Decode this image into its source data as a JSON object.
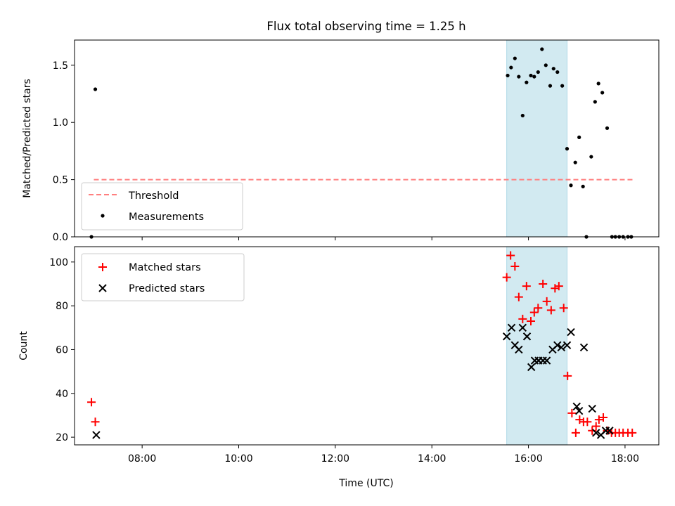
{
  "figure": {
    "title": "Flux total observing time = 1.25 h"
  },
  "chart_data": [
    {
      "type": "scatter",
      "ylabel": "Matched/Predicted stars",
      "xlabel": "",
      "xlim": [
        6.6,
        18.7
      ],
      "ylim": [
        0,
        1.72
      ],
      "yticks": [
        0.0,
        0.5,
        1.0,
        1.5
      ],
      "ytick_labels": [
        "0.0",
        "0.5",
        "1.0",
        "1.5"
      ],
      "grid": false,
      "legend_position": "lower left",
      "shaded_span": {
        "x0": 15.55,
        "x1": 16.8,
        "color": "#add8e6"
      },
      "threshold": {
        "name": "Threshold",
        "value": 0.5,
        "x0": 6.6,
        "x1": 18.16,
        "color": "#ff7f7f",
        "style": "dashed"
      },
      "series": [
        {
          "name": "Measurements",
          "marker": "dot",
          "color": "#000000",
          "points": [
            [
              6.95,
              0.0
            ],
            [
              7.03,
              1.29
            ],
            [
              15.57,
              1.41
            ],
            [
              15.64,
              1.48
            ],
            [
              15.72,
              1.56
            ],
            [
              15.8,
              1.4
            ],
            [
              15.88,
              1.06
            ],
            [
              15.96,
              1.35
            ],
            [
              16.05,
              1.41
            ],
            [
              16.12,
              1.4
            ],
            [
              16.2,
              1.44
            ],
            [
              16.28,
              1.64
            ],
            [
              16.36,
              1.5
            ],
            [
              16.45,
              1.32
            ],
            [
              16.52,
              1.47
            ],
            [
              16.6,
              1.44
            ],
            [
              16.7,
              1.32
            ],
            [
              16.8,
              0.77
            ],
            [
              16.88,
              0.45
            ],
            [
              16.97,
              0.65
            ],
            [
              17.05,
              0.87
            ],
            [
              17.13,
              0.44
            ],
            [
              17.2,
              0.0
            ],
            [
              17.3,
              0.7
            ],
            [
              17.38,
              1.18
            ],
            [
              17.45,
              1.34
            ],
            [
              17.53,
              1.26
            ],
            [
              17.63,
              0.95
            ],
            [
              17.73,
              0.0
            ],
            [
              17.8,
              0.0
            ],
            [
              17.88,
              0.0
            ],
            [
              17.96,
              0.0
            ],
            [
              18.06,
              0.0
            ],
            [
              18.13,
              0.0
            ]
          ]
        }
      ]
    },
    {
      "type": "scatter",
      "ylabel": "Count",
      "xlabel": "Time (UTC)",
      "xlim": [
        6.6,
        18.7
      ],
      "ylim": [
        16.5,
        107
      ],
      "yticks": [
        20,
        40,
        60,
        80,
        100
      ],
      "ytick_labels": [
        "20",
        "40",
        "60",
        "80",
        "100"
      ],
      "xticks": [
        8,
        10,
        12,
        14,
        16,
        18
      ],
      "xtick_labels": [
        "08:00",
        "10:00",
        "12:00",
        "14:00",
        "16:00",
        "18:00"
      ],
      "grid": false,
      "legend_position": "upper left",
      "shaded_span": {
        "x0": 15.55,
        "x1": 16.8,
        "color": "#add8e6"
      },
      "series": [
        {
          "name": "Matched stars",
          "marker": "plus",
          "color": "#ff0000",
          "points": [
            [
              6.95,
              36
            ],
            [
              7.03,
              27
            ],
            [
              15.55,
              93
            ],
            [
              15.63,
              103
            ],
            [
              15.72,
              98
            ],
            [
              15.8,
              84
            ],
            [
              15.88,
              74
            ],
            [
              15.96,
              89
            ],
            [
              16.05,
              73
            ],
            [
              16.12,
              77
            ],
            [
              16.2,
              79
            ],
            [
              16.3,
              90
            ],
            [
              16.38,
              82
            ],
            [
              16.47,
              78
            ],
            [
              16.55,
              88
            ],
            [
              16.63,
              89
            ],
            [
              16.73,
              79
            ],
            [
              16.81,
              48
            ],
            [
              16.9,
              31
            ],
            [
              16.98,
              22
            ],
            [
              17.06,
              28
            ],
            [
              17.14,
              27
            ],
            [
              17.22,
              27
            ],
            [
              17.32,
              23
            ],
            [
              17.4,
              25
            ],
            [
              17.46,
              28
            ],
            [
              17.55,
              29
            ],
            [
              17.63,
              23
            ],
            [
              17.72,
              22
            ],
            [
              17.8,
              22
            ],
            [
              17.88,
              22
            ],
            [
              17.96,
              22
            ],
            [
              18.06,
              22
            ],
            [
              18.15,
              22
            ]
          ]
        },
        {
          "name": "Predicted stars",
          "marker": "x",
          "color": "#000000",
          "points": [
            [
              7.05,
              21
            ],
            [
              15.55,
              66
            ],
            [
              15.65,
              70
            ],
            [
              15.72,
              62
            ],
            [
              15.8,
              60
            ],
            [
              15.88,
              70
            ],
            [
              15.97,
              66
            ],
            [
              16.06,
              52
            ],
            [
              16.13,
              55
            ],
            [
              16.21,
              55
            ],
            [
              16.3,
              55
            ],
            [
              16.38,
              55
            ],
            [
              16.5,
              60
            ],
            [
              16.6,
              62
            ],
            [
              16.68,
              61
            ],
            [
              16.8,
              62
            ],
            [
              16.88,
              68
            ],
            [
              17.0,
              34
            ],
            [
              17.05,
              32
            ],
            [
              17.15,
              61
            ],
            [
              17.32,
              33
            ],
            [
              17.4,
              22
            ],
            [
              17.5,
              21
            ],
            [
              17.6,
              23
            ],
            [
              17.68,
              23
            ]
          ]
        }
      ]
    }
  ]
}
